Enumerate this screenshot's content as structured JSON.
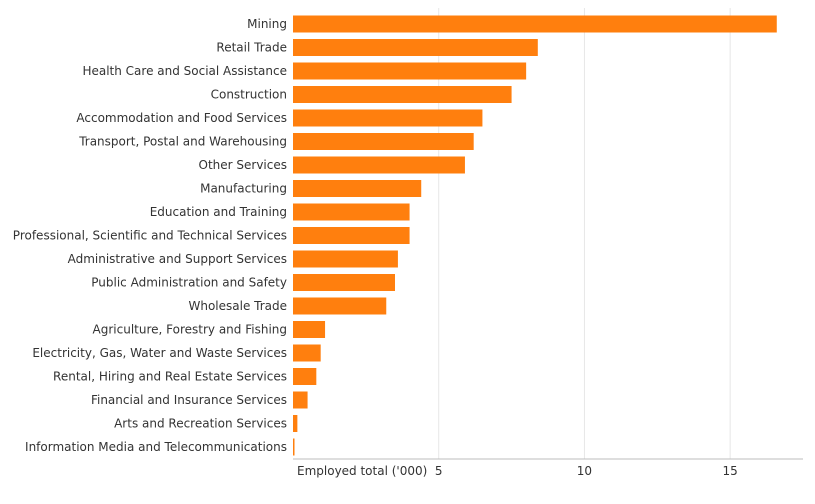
{
  "chart_data": {
    "type": "bar",
    "orientation": "horizontal",
    "categories": [
      "Mining",
      "Retail Trade",
      "Health Care and Social Assistance",
      "Construction",
      "Accommodation and Food Services",
      "Transport, Postal and Warehousing",
      "Other Services",
      "Manufacturing",
      "Education and Training",
      "Professional, Scientific and Technical Services",
      "Administrative and Support Services",
      "Public Administration and Safety",
      "Wholesale Trade",
      "Agriculture, Forestry and Fishing",
      "Electricity, Gas, Water and Waste Services",
      "Rental, Hiring and Real Estate Services",
      "Financial and Insurance Services",
      "Arts and Recreation Services",
      "Information Media and Telecommunications"
    ],
    "values": [
      16.6,
      8.4,
      8.0,
      7.5,
      6.5,
      6.2,
      5.9,
      4.4,
      4.0,
      4.0,
      3.6,
      3.5,
      3.2,
      1.1,
      0.95,
      0.8,
      0.5,
      0.15,
      0.05
    ],
    "xlabel": "Employed total ('000)",
    "ylabel": "",
    "xlim": [
      0,
      17.5
    ],
    "xticks": [
      5,
      10,
      15
    ],
    "bar_color": "#ff7f0e",
    "grid": true
  }
}
